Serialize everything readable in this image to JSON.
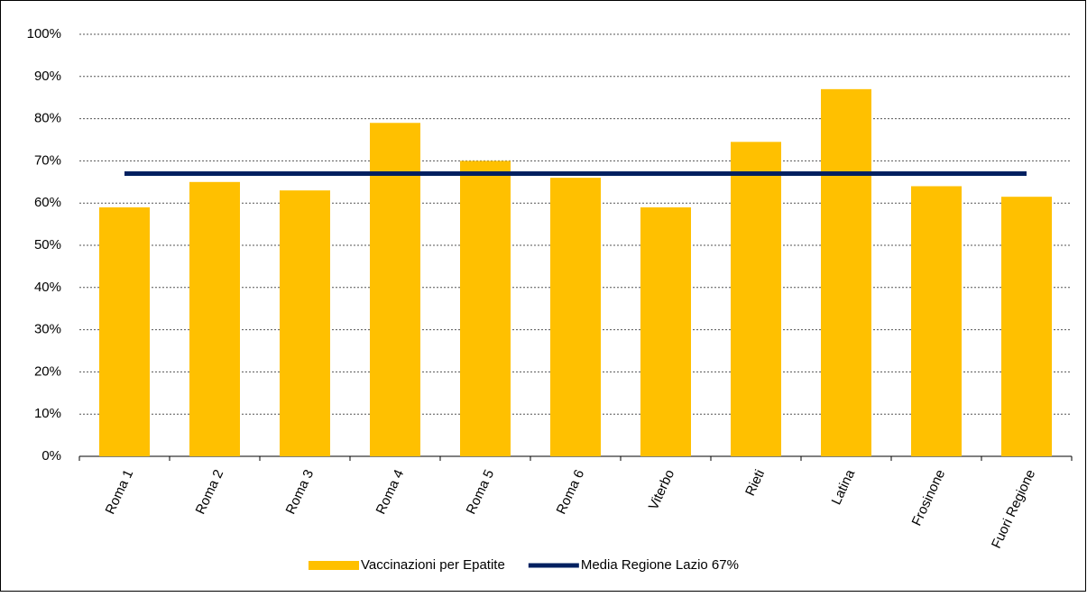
{
  "chart_data": {
    "type": "bar",
    "categories": [
      "Roma 1",
      "Roma 2",
      "Roma 3",
      "Roma 4",
      "Roma 5",
      "Roma 6",
      "Viterbo",
      "Rieti",
      "Latina",
      "Frosinone",
      "Fuori Regione"
    ],
    "series": [
      {
        "name": "Vaccinazioni per Epatite",
        "type": "bar",
        "color": "#ffc000",
        "values": [
          59,
          65,
          63,
          79,
          70,
          66,
          59,
          74.5,
          87,
          64,
          61.5
        ]
      },
      {
        "name": "Media Regione Lazio 67%",
        "type": "line",
        "color": "#002060",
        "values": [
          67,
          67,
          67,
          67,
          67,
          67,
          67,
          67,
          67,
          67,
          67
        ]
      }
    ],
    "ylim": [
      0,
      100
    ],
    "yticks": [
      {
        "value": 0,
        "label": "0%"
      },
      {
        "value": 10,
        "label": "10%"
      },
      {
        "value": 20,
        "label": "20%"
      },
      {
        "value": 30,
        "label": "30%"
      },
      {
        "value": 40,
        "label": "40%"
      },
      {
        "value": 50,
        "label": "50%"
      },
      {
        "value": 60,
        "label": "60%"
      },
      {
        "value": 70,
        "label": "70%"
      },
      {
        "value": 80,
        "label": "80%"
      },
      {
        "value": 90,
        "label": "90%"
      },
      {
        "value": 100,
        "label": "100%"
      }
    ],
    "grid": true,
    "legend": "bottom"
  }
}
